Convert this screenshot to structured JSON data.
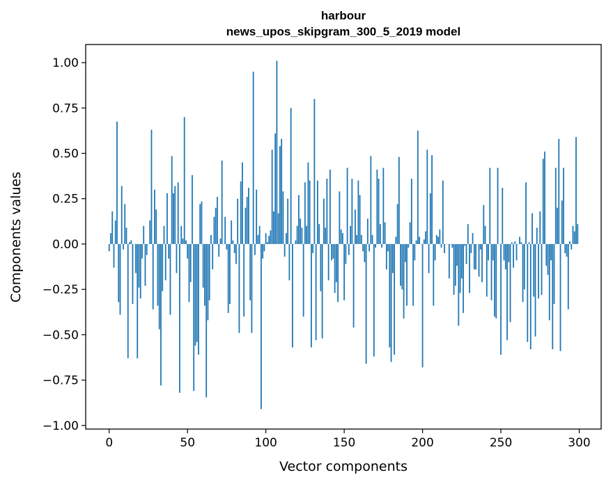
{
  "chart_data": {
    "type": "bar",
    "title": "harbour",
    "subtitle": "news_upos_skipgram_300_5_2019 model",
    "xlabel": "Vector components",
    "ylabel": "Components values",
    "xlim": [
      -15,
      314
    ],
    "ylim": [
      -1.02,
      1.1
    ],
    "xticks": [
      0,
      50,
      100,
      150,
      200,
      250,
      300
    ],
    "yticks": [
      -1.0,
      -0.75,
      -0.5,
      -0.25,
      0.0,
      0.25,
      0.5,
      0.75,
      1.0
    ],
    "ytick_labels": [
      "−1.00",
      "−0.75",
      "−0.50",
      "−0.25",
      "0.00",
      "0.25",
      "0.50",
      "0.75",
      "1.00"
    ],
    "xtick_labels": [
      "0",
      "50",
      "100",
      "150",
      "200",
      "250",
      "300"
    ],
    "bar_color": "#1f77b4",
    "grid": false,
    "x": "0..299",
    "values": [
      -0.04,
      0.06,
      0.18,
      -0.13,
      0.13,
      0.675,
      -0.32,
      -0.39,
      0.32,
      -0.03,
      0.22,
      0.09,
      -0.63,
      0.01,
      0.02,
      -0.33,
      0.0,
      -0.16,
      -0.63,
      -0.24,
      -0.3,
      -0.08,
      0.1,
      -0.23,
      -0.06,
      0.0,
      0.13,
      0.63,
      -0.36,
      0.3,
      0.19,
      -0.34,
      -0.47,
      -0.78,
      -0.26,
      0.1,
      -0.2,
      0.28,
      -0.08,
      -0.39,
      0.485,
      0.28,
      0.32,
      -0.16,
      0.34,
      -0.82,
      0.1,
      0.03,
      0.7,
      0.02,
      -0.08,
      -0.32,
      -0.21,
      0.38,
      -0.81,
      -0.56,
      -0.54,
      -0.61,
      0.22,
      0.235,
      -0.24,
      -0.34,
      -0.845,
      -0.42,
      -0.31,
      0.05,
      -0.14,
      0.15,
      0.2,
      0.26,
      -0.07,
      0.03,
      0.46,
      0.0,
      0.15,
      -0.03,
      -0.38,
      -0.33,
      0.13,
      0.02,
      -0.05,
      -0.11,
      0.25,
      -0.49,
      0.345,
      0.45,
      -0.4,
      0.2,
      0.26,
      0.31,
      -0.31,
      -0.49,
      0.95,
      -0.06,
      0.3,
      0.05,
      0.1,
      -0.91,
      -0.08,
      -0.04,
      0.06,
      0.01,
      0.045,
      0.075,
      0.52,
      0.18,
      0.61,
      1.01,
      0.17,
      0.54,
      0.58,
      0.29,
      -0.07,
      0.06,
      0.25,
      -0.2,
      0.75,
      -0.57,
      0.0,
      0.02,
      0.1,
      0.27,
      0.14,
      0.09,
      -0.4,
      0.34,
      0.1,
      0.45,
      0.35,
      -0.57,
      -0.05,
      0.8,
      -0.53,
      0.35,
      0.11,
      -0.26,
      -0.52,
      0.25,
      0.09,
      0.36,
      -0.2,
      0.41,
      -0.09,
      -0.08,
      -0.27,
      -0.21,
      -0.32,
      0.29,
      0.08,
      0.06,
      -0.31,
      -0.11,
      0.42,
      -0.06,
      0.1,
      0.36,
      -0.46,
      0.19,
      0.05,
      0.35,
      0.27,
      0.05,
      -0.04,
      -0.1,
      -0.66,
      0.14,
      -0.04,
      0.485,
      0.05,
      -0.62,
      -0.02,
      0.41,
      0.36,
      0.11,
      -0.02,
      0.42,
      0.12,
      -0.14,
      -0.04,
      -0.57,
      -0.65,
      -0.16,
      -0.61,
      0.04,
      0.22,
      0.48,
      -0.23,
      -0.25,
      -0.41,
      -0.1,
      -0.34,
      -0.02,
      0.12,
      0.36,
      -0.34,
      -0.09,
      0.02,
      0.625,
      0.04,
      0.0,
      -0.68,
      0.025,
      0.07,
      0.52,
      -0.16,
      0.28,
      0.49,
      -0.34,
      -0.09,
      0.05,
      0.04,
      0.08,
      -0.02,
      0.35,
      -0.05,
      0.0,
      0.0,
      -0.19,
      0.0,
      -0.02,
      -0.28,
      -0.23,
      -0.12,
      -0.45,
      -0.27,
      -0.19,
      -0.38,
      -0.01,
      -0.11,
      0.11,
      -0.27,
      -0.05,
      0.06,
      -0.14,
      -0.14,
      0.0,
      -0.18,
      -0.03,
      -0.21,
      0.215,
      0.1,
      -0.29,
      -0.09,
      0.42,
      -0.31,
      -0.09,
      -0.4,
      -0.41,
      0.42,
      0.0,
      -0.61,
      0.31,
      -0.09,
      -0.14,
      -0.53,
      -0.1,
      -0.43,
      0.01,
      -0.13,
      0.015,
      -0.09,
      0.0,
      0.04,
      0.01,
      -0.32,
      -0.25,
      0.34,
      -0.54,
      0.01,
      -0.58,
      0.17,
      -0.29,
      -0.51,
      0.09,
      -0.3,
      0.18,
      -0.28,
      0.47,
      0.51,
      -0.12,
      -0.17,
      -0.42,
      -0.09,
      -0.58,
      -0.33,
      0.42,
      0.2,
      0.58,
      -0.59,
      0.24,
      0.42,
      -0.05,
      -0.07,
      -0.36,
      0.015,
      -0.03,
      0.1,
      0.07,
      0.59,
      0.11
    ]
  }
}
